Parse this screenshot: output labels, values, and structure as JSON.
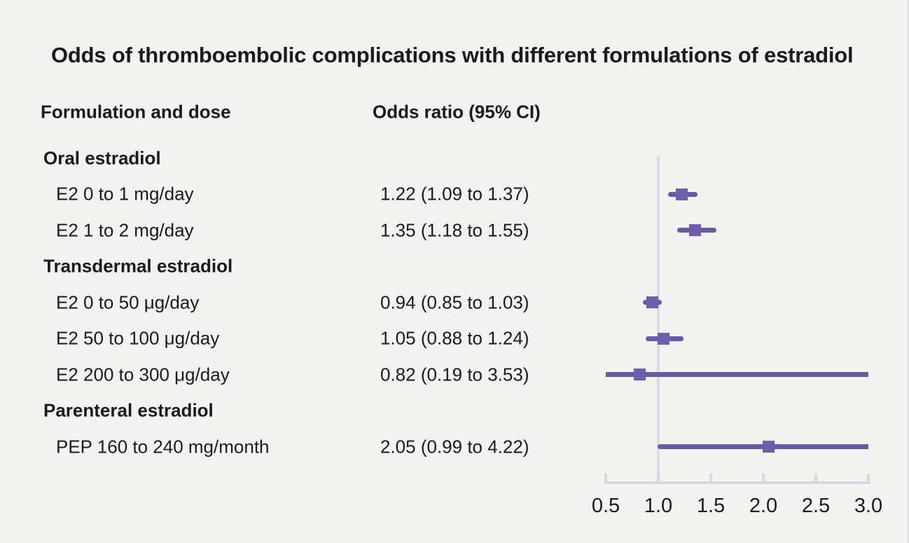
{
  "title": "Odds of thromboembolic complications with different formulations of estradiol",
  "columns": {
    "label": "Formulation and dose",
    "value": "Odds ratio (95% CI)"
  },
  "chart_data": {
    "type": "forest",
    "title": "Odds of thromboembolic complications with different formulations of estradiol",
    "xlabel": "",
    "ylabel": "",
    "axis": {
      "min": 0.5,
      "max": 3.0,
      "ticks": [
        0.5,
        1.0,
        1.5,
        2.0,
        2.5,
        3.0
      ],
      "tick_labels": [
        "0.5",
        "1.0",
        "1.5",
        "2.0",
        "2.5",
        "3.0"
      ],
      "reference_line": 1.0,
      "grid": false
    },
    "rows": [
      {
        "kind": "group",
        "label": "Oral estradiol"
      },
      {
        "kind": "item",
        "label": "E2 0 to 1 mg/day",
        "value_text": "1.22 (1.09 to 1.37)",
        "or": 1.22,
        "lo": 1.09,
        "hi": 1.37
      },
      {
        "kind": "item",
        "label": "E2 1 to 2 mg/day",
        "value_text": "1.35 (1.18 to 1.55)",
        "or": 1.35,
        "lo": 1.18,
        "hi": 1.55
      },
      {
        "kind": "group",
        "label": "Transdermal estradiol"
      },
      {
        "kind": "item",
        "label": "E2 0 to 50 μg/day",
        "value_text": "0.94 (0.85 to 1.03)",
        "or": 0.94,
        "lo": 0.85,
        "hi": 1.03
      },
      {
        "kind": "item",
        "label": "E2 50 to 100 μg/day",
        "value_text": "1.05 (0.88 to 1.24)",
        "or": 1.05,
        "lo": 0.88,
        "hi": 1.24
      },
      {
        "kind": "item",
        "label": "E2 200 to 300 μg/day",
        "value_text": "0.82 (0.19 to 3.53)",
        "or": 0.82,
        "lo": 0.19,
        "hi": 3.53
      },
      {
        "kind": "group",
        "label": "Parenteral estradiol"
      },
      {
        "kind": "item",
        "label": "PEP 160 to 240 mg/month",
        "value_text": "2.05 (0.99 to 4.22)",
        "or": 2.05,
        "lo": 0.99,
        "hi": 4.22
      }
    ],
    "colors": {
      "background": "#f2f2f1",
      "text": "#1b1b1b",
      "marker": "#6f5dad",
      "ci_line": "#695aa6",
      "axis": "#d5d8de",
      "reference_line": "#d9dce2"
    }
  }
}
